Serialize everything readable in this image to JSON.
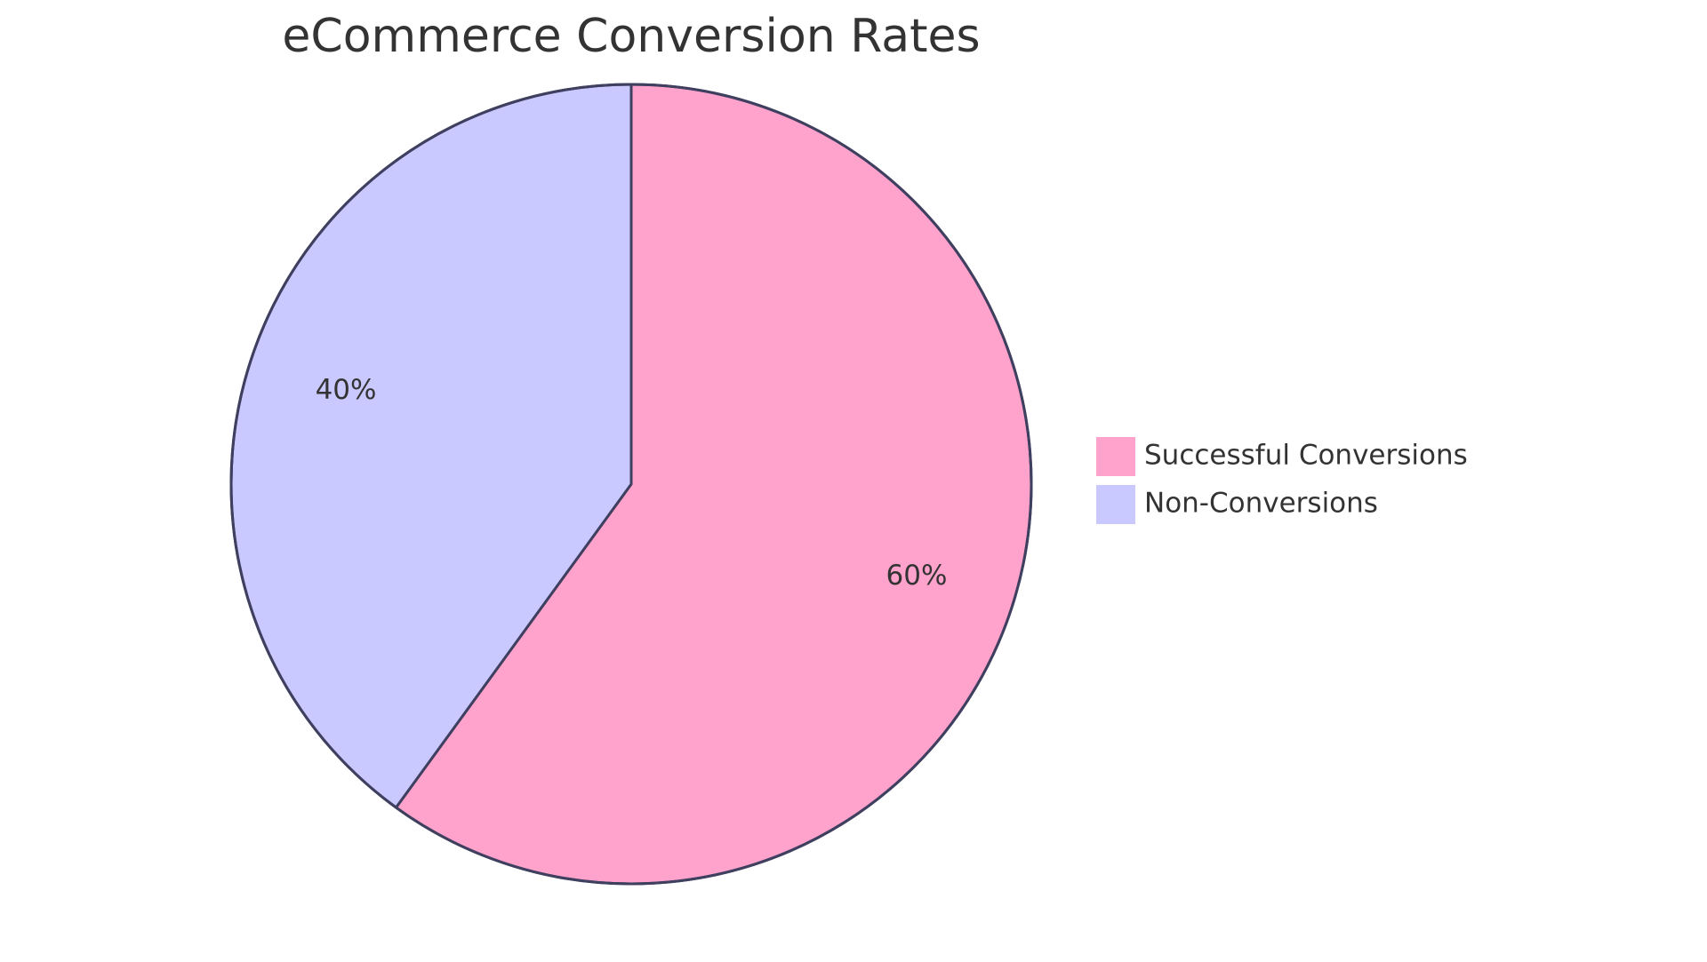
{
  "chart_data": {
    "type": "pie",
    "title": "eCommerce Conversion Rates",
    "slices": [
      {
        "label": "Successful Conversions",
        "value": 60,
        "display": "60%",
        "color": "#ffa3cd"
      },
      {
        "label": "Non-Conversions",
        "value": 40,
        "display": "40%",
        "color": "#c9c9ff"
      }
    ],
    "start": "12 o'clock",
    "direction": "clockwise",
    "legend_position": "right",
    "outline_color": "#3f3f5f"
  }
}
